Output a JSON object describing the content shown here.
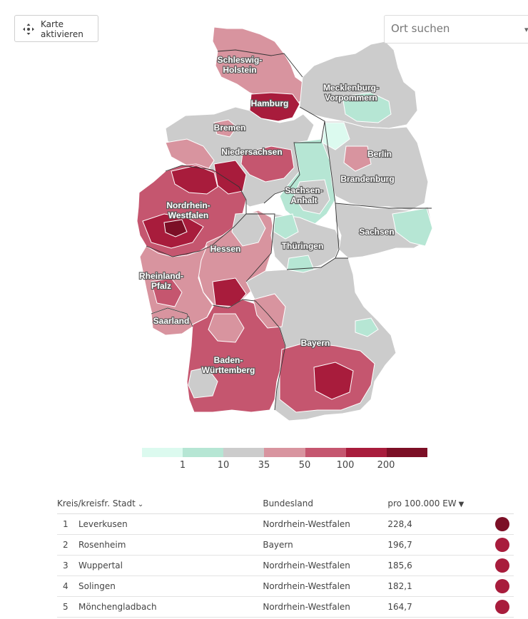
{
  "controls": {
    "activate_label_line1": "Karte",
    "activate_label_line2": "aktivieren",
    "search_placeholder": "Ort suchen"
  },
  "map": {
    "states": [
      {
        "name_line1": "Schleswig-",
        "name_line2": "Holstein"
      },
      {
        "name_line1": "Mecklenburg-",
        "name_line2": "Vorpommern"
      },
      {
        "name_line1": "Hamburg",
        "name_line2": ""
      },
      {
        "name_line1": "Bremen",
        "name_line2": ""
      },
      {
        "name_line1": "Niedersachsen",
        "name_line2": ""
      },
      {
        "name_line1": "Berlin",
        "name_line2": ""
      },
      {
        "name_line1": "Brandenburg",
        "name_line2": ""
      },
      {
        "name_line1": "Sachsen-",
        "name_line2": "Anhalt"
      },
      {
        "name_line1": "Nordrhein-",
        "name_line2": "Westfalen"
      },
      {
        "name_line1": "Sachsen",
        "name_line2": ""
      },
      {
        "name_line1": "Thüringen",
        "name_line2": ""
      },
      {
        "name_line1": "Hessen",
        "name_line2": ""
      },
      {
        "name_line1": "Rheinland-",
        "name_line2": "Pfalz"
      },
      {
        "name_line1": "Saarland",
        "name_line2": ""
      },
      {
        "name_line1": "Bayern",
        "name_line2": ""
      },
      {
        "name_line1": "Baden-",
        "name_line2": "Württemberg"
      }
    ],
    "legend": {
      "colors": [
        "#dcfaef",
        "#b6e6d4",
        "#cccccc",
        "#d8949f",
        "#c5566f",
        "#a81c3c",
        "#7c0f26"
      ],
      "labels": [
        "1",
        "10",
        "35",
        "50",
        "100",
        "200"
      ]
    }
  },
  "table": {
    "headers": {
      "kreis": "Kreis/kreisfr. Stadt",
      "land": "Bundesland",
      "value": "pro 100.000 EW"
    },
    "rows": [
      {
        "rank": "1",
        "name": "Leverkusen",
        "state": "Nordrhein-Westfalen",
        "value": "228,4",
        "color": "#7c0f26"
      },
      {
        "rank": "2",
        "name": "Rosenheim",
        "state": "Bayern",
        "value": "196,7",
        "color": "#a81c3c"
      },
      {
        "rank": "3",
        "name": "Wuppertal",
        "state": "Nordrhein-Westfalen",
        "value": "185,6",
        "color": "#a81c3c"
      },
      {
        "rank": "4",
        "name": "Solingen",
        "state": "Nordrhein-Westfalen",
        "value": "182,1",
        "color": "#a81c3c"
      },
      {
        "rank": "5",
        "name": "Mönchengladbach",
        "state": "Nordrhein-Westfalen",
        "value": "164,7",
        "color": "#a81c3c"
      }
    ]
  }
}
